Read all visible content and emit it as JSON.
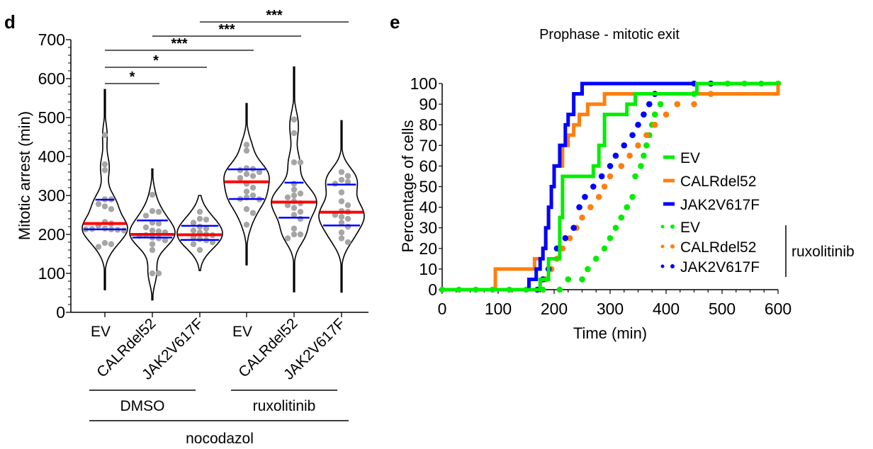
{
  "chart_data": [
    {
      "panel_label": "d",
      "type": "violin",
      "title": "",
      "xlabel": "",
      "ylabel": "Mitotic arrest (min)",
      "ylim": [
        0,
        700
      ],
      "yticks": [
        0,
        100,
        200,
        300,
        400,
        500,
        600,
        700
      ],
      "yminor_step": 20,
      "categories": [
        "EV",
        "CALRdel52",
        "JAK2V617F",
        "EV",
        "CALRdel52",
        "JAK2V617F"
      ],
      "groups": [
        {
          "label": "DMSO",
          "span": [
            0,
            2
          ]
        },
        {
          "label": "ruxolitinib",
          "span": [
            3,
            5
          ]
        }
      ],
      "outer_group": {
        "label": "nocodazol",
        "span": [
          0,
          5
        ]
      },
      "colors": {
        "violin": "#000000",
        "median": "#ff0000",
        "quartile": "#0000ff",
        "points": "#a6a6a6"
      },
      "series": [
        {
          "name": "DMSO EV",
          "min": 58,
          "max": 572,
          "q1": 213,
          "median": 228,
          "q3": 289,
          "points": [
            455,
            380,
            365,
            290,
            290,
            278,
            272,
            265,
            232,
            228,
            222,
            215,
            213,
            212,
            214,
            210,
            213,
            178,
            175,
            168
          ]
        },
        {
          "name": "DMSO CALRdel52",
          "min": 32,
          "max": 368,
          "q1": 192,
          "median": 200,
          "q3": 236,
          "points": [
            302,
            260,
            258,
            248,
            230,
            228,
            218,
            210,
            208,
            205,
            198,
            196,
            192,
            190,
            185,
            175,
            160,
            100,
            100
          ]
        },
        {
          "name": "DMSO JAK2V617F",
          "min": 107,
          "max": 300,
          "q1": 186,
          "median": 199,
          "q3": 222,
          "points": [
            258,
            240,
            238,
            230,
            220,
            215,
            210,
            205,
            200,
            198,
            192,
            188,
            185,
            180,
            175,
            160
          ]
        },
        {
          "name": "ruxolitinib EV",
          "min": 122,
          "max": 536,
          "q1": 291,
          "median": 335,
          "q3": 367,
          "points": [
            430,
            415,
            370,
            368,
            365,
            360,
            355,
            350,
            345,
            330,
            320,
            310,
            300,
            295,
            291,
            290,
            265,
            255,
            225
          ]
        },
        {
          "name": "ruxolitinib CALRdel52",
          "min": 53,
          "max": 630,
          "q1": 243,
          "median": 283,
          "q3": 333,
          "points": [
            495,
            460,
            385,
            385,
            330,
            315,
            305,
            300,
            295,
            285,
            280,
            275,
            268,
            258,
            250,
            240,
            215,
            200,
            200,
            190
          ]
        },
        {
          "name": "ruxolitinib JAK2V617F",
          "min": 52,
          "max": 492,
          "q1": 223,
          "median": 257,
          "q3": 328,
          "points": [
            360,
            350,
            340,
            335,
            330,
            308,
            285,
            275,
            260,
            258,
            250,
            245,
            240,
            230,
            220,
            205,
            190,
            180
          ]
        }
      ],
      "significance": [
        {
          "from": 0,
          "to": 1,
          "label": "*"
        },
        {
          "from": 0,
          "to": 2,
          "label": "*"
        },
        {
          "from": 0,
          "to": 3,
          "label": "***"
        },
        {
          "from": 1,
          "to": 4,
          "label": "***"
        },
        {
          "from": 2,
          "to": 5,
          "label": "***"
        }
      ]
    },
    {
      "panel_label": "e",
      "type": "line",
      "title": "Prophase - mitotic exit",
      "xlabel": "Time (min)",
      "ylabel": "Percentage of cells",
      "xlim": [
        0,
        600
      ],
      "ylim": [
        0,
        100
      ],
      "xticks": [
        0,
        100,
        200,
        300,
        400,
        500,
        600
      ],
      "yticks": [
        0,
        10,
        20,
        30,
        40,
        50,
        60,
        70,
        80,
        90,
        100
      ],
      "legend_position": "right",
      "legend_bracket_label": "ruxolitinib",
      "series": [
        {
          "name": "EV",
          "treatment": "DMSO",
          "style": "step-solid",
          "color": "#00ee00",
          "x": [
            0,
            175,
            190,
            210,
            215,
            270,
            280,
            290,
            330,
            345,
            455,
            600
          ],
          "y": [
            0,
            5,
            15,
            35,
            55,
            60,
            70,
            85,
            90,
            95,
            100,
            100
          ]
        },
        {
          "name": "CALRdel52",
          "treatment": "DMSO",
          "style": "step-solid",
          "color": "#ff7f0e",
          "x": [
            0,
            95,
            165,
            180,
            185,
            190,
            195,
            200,
            215,
            225,
            235,
            245,
            260,
            290,
            600
          ],
          "y": [
            0,
            10,
            15,
            20,
            30,
            40,
            50,
            60,
            70,
            75,
            80,
            85,
            90,
            95,
            100
          ]
        },
        {
          "name": "JAK2V617F",
          "treatment": "DMSO",
          "style": "step-solid",
          "color": "#0000ff",
          "x": [
            0,
            155,
            168,
            175,
            180,
            185,
            190,
            195,
            200,
            210,
            220,
            225,
            235,
            250,
            600
          ],
          "y": [
            0,
            5,
            10,
            15,
            20,
            30,
            40,
            50,
            60,
            70,
            80,
            85,
            95,
            100,
            100
          ]
        },
        {
          "name": "EV",
          "treatment": "ruxolitinib",
          "style": "dotted",
          "color": "#00ee00",
          "x": [
            0,
            30,
            60,
            90,
            120,
            150,
            180,
            210,
            225,
            250,
            260,
            275,
            290,
            300,
            310,
            320,
            330,
            340,
            345,
            355,
            360,
            365,
            370,
            375,
            380,
            390,
            420,
            450,
            480,
            510,
            540,
            570,
            600
          ],
          "y": [
            0,
            0,
            0,
            0,
            0,
            0,
            0,
            0,
            5,
            5,
            10,
            15,
            20,
            25,
            30,
            35,
            40,
            45,
            55,
            60,
            65,
            70,
            75,
            80,
            85,
            90,
            90,
            95,
            100,
            100,
            100,
            100,
            100
          ]
        },
        {
          "name": "CALRdel52",
          "treatment": "ruxolitinib",
          "style": "dotted",
          "color": "#ff7f0e",
          "x": [
            185,
            195,
            205,
            215,
            228,
            240,
            250,
            265,
            280,
            290,
            300,
            320,
            335,
            350,
            365,
            380,
            400,
            420,
            450,
            480
          ],
          "y": [
            5,
            10,
            15,
            20,
            25,
            30,
            35,
            40,
            45,
            50,
            55,
            60,
            65,
            70,
            75,
            80,
            85,
            90,
            90,
            95
          ]
        },
        {
          "name": "JAK2V617F",
          "treatment": "ruxolitinib",
          "style": "dotted",
          "color": "#0000ff",
          "x": [
            170,
            180,
            190,
            205,
            220,
            235,
            245,
            255,
            270,
            285,
            300,
            310,
            325,
            340,
            350,
            360,
            370,
            380,
            450,
            480
          ],
          "y": [
            0,
            5,
            10,
            20,
            25,
            30,
            40,
            45,
            50,
            55,
            60,
            65,
            70,
            75,
            80,
            85,
            90,
            95,
            100,
            100
          ]
        }
      ]
    }
  ]
}
